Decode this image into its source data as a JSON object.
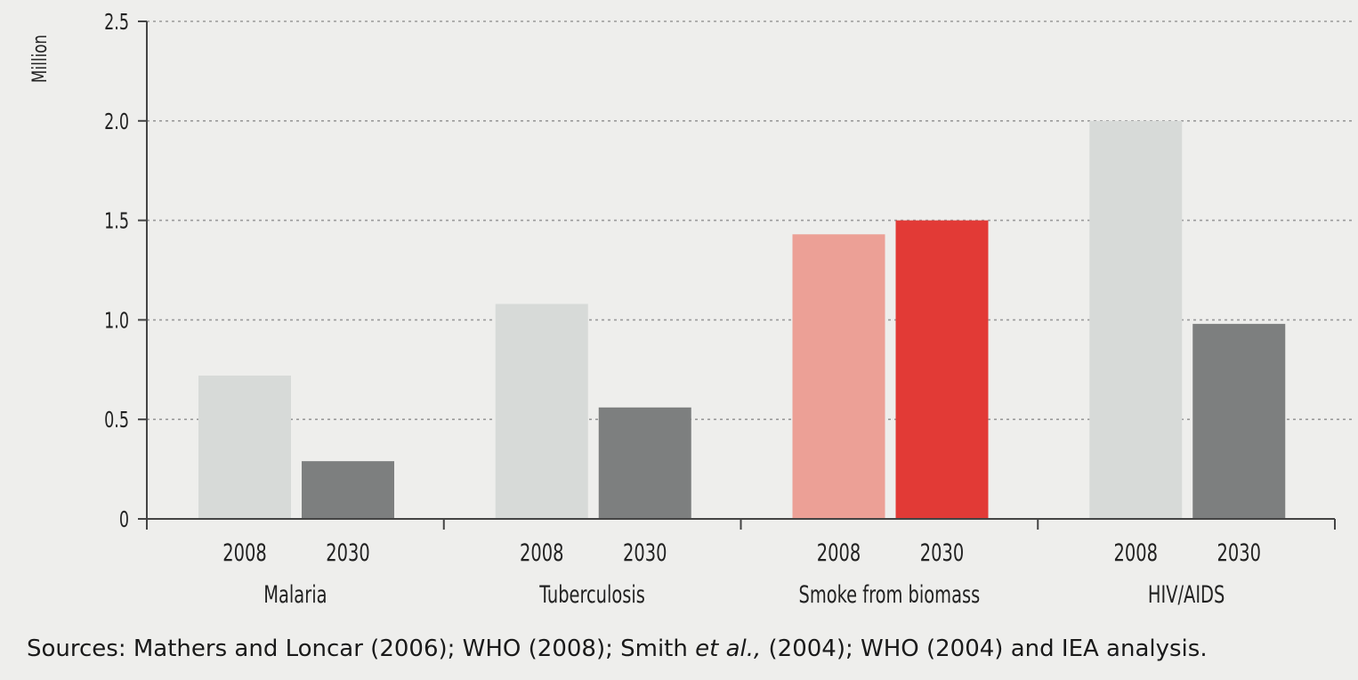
{
  "chart_data": {
    "type": "bar",
    "ylabel": "Million",
    "ylim": [
      0,
      2.5
    ],
    "yticks": [
      "0",
      "0.5",
      "1.0",
      "1.5",
      "2.0",
      "2.5"
    ],
    "grid": true,
    "groups": [
      {
        "name": "Malaria",
        "bars": [
          {
            "year": "2008",
            "value": 0.72,
            "color": "#d7dad8"
          },
          {
            "year": "2030",
            "value": 0.29,
            "color": "#7d7f7f"
          }
        ]
      },
      {
        "name": "Tuberculosis",
        "bars": [
          {
            "year": "2008",
            "value": 1.08,
            "color": "#d7dad8"
          },
          {
            "year": "2030",
            "value": 0.56,
            "color": "#7d7f7f"
          }
        ]
      },
      {
        "name": "Smoke from biomass",
        "bars": [
          {
            "year": "2008",
            "value": 1.43,
            "color": "#eca096"
          },
          {
            "year": "2030",
            "value": 1.5,
            "color": "#e23a36"
          }
        ]
      },
      {
        "name": "HIV/AIDS",
        "bars": [
          {
            "year": "2008",
            "value": 2.0,
            "color": "#d7dad8"
          },
          {
            "year": "2030",
            "value": 0.98,
            "color": "#7d7f7f"
          }
        ]
      }
    ]
  },
  "source": {
    "prefix": "Sources: Mathers and Loncar (2006); WHO (2008); Smith ",
    "italic": "et al.,",
    "suffix": " (2004); WHO (2004) and IEA analysis."
  }
}
